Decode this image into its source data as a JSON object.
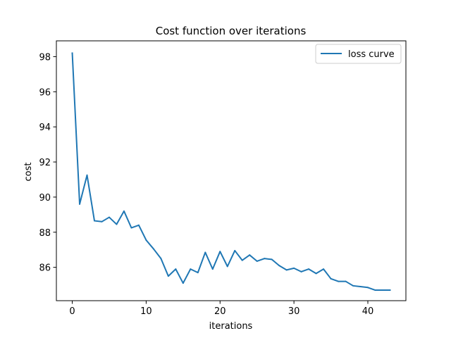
{
  "chart_data": {
    "type": "line",
    "title": "Cost function over iterations",
    "xlabel": "iterations",
    "ylabel": "cost",
    "xlim": [
      -2.15,
      45.15
    ],
    "ylim": [
      84.1,
      98.9
    ],
    "xticks": [
      0,
      10,
      20,
      30,
      40
    ],
    "yticks": [
      86,
      88,
      90,
      92,
      94,
      96,
      98
    ],
    "grid": false,
    "legend_position": "top-right",
    "series": [
      {
        "name": "loss curve",
        "color": "#1f77b4",
        "x": [
          0,
          1,
          2,
          3,
          4,
          5,
          6,
          7,
          8,
          9,
          10,
          11,
          12,
          13,
          14,
          15,
          16,
          17,
          18,
          19,
          20,
          21,
          22,
          23,
          24,
          25,
          26,
          27,
          28,
          29,
          30,
          31,
          32,
          33,
          34,
          35,
          36,
          37,
          38,
          39,
          40,
          41,
          42,
          43
        ],
        "y": [
          98.2,
          89.6,
          91.25,
          88.65,
          88.6,
          88.85,
          88.45,
          89.2,
          88.25,
          88.4,
          87.55,
          87.05,
          86.5,
          85.5,
          85.9,
          85.1,
          85.9,
          85.7,
          86.85,
          85.9,
          86.9,
          86.05,
          86.95,
          86.4,
          86.7,
          86.35,
          86.5,
          86.45,
          86.1,
          85.85,
          85.95,
          85.75,
          85.9,
          85.65,
          85.9,
          85.35,
          85.2,
          85.2,
          84.95,
          84.9,
          84.85,
          84.7,
          84.7,
          84.7
        ]
      }
    ]
  }
}
